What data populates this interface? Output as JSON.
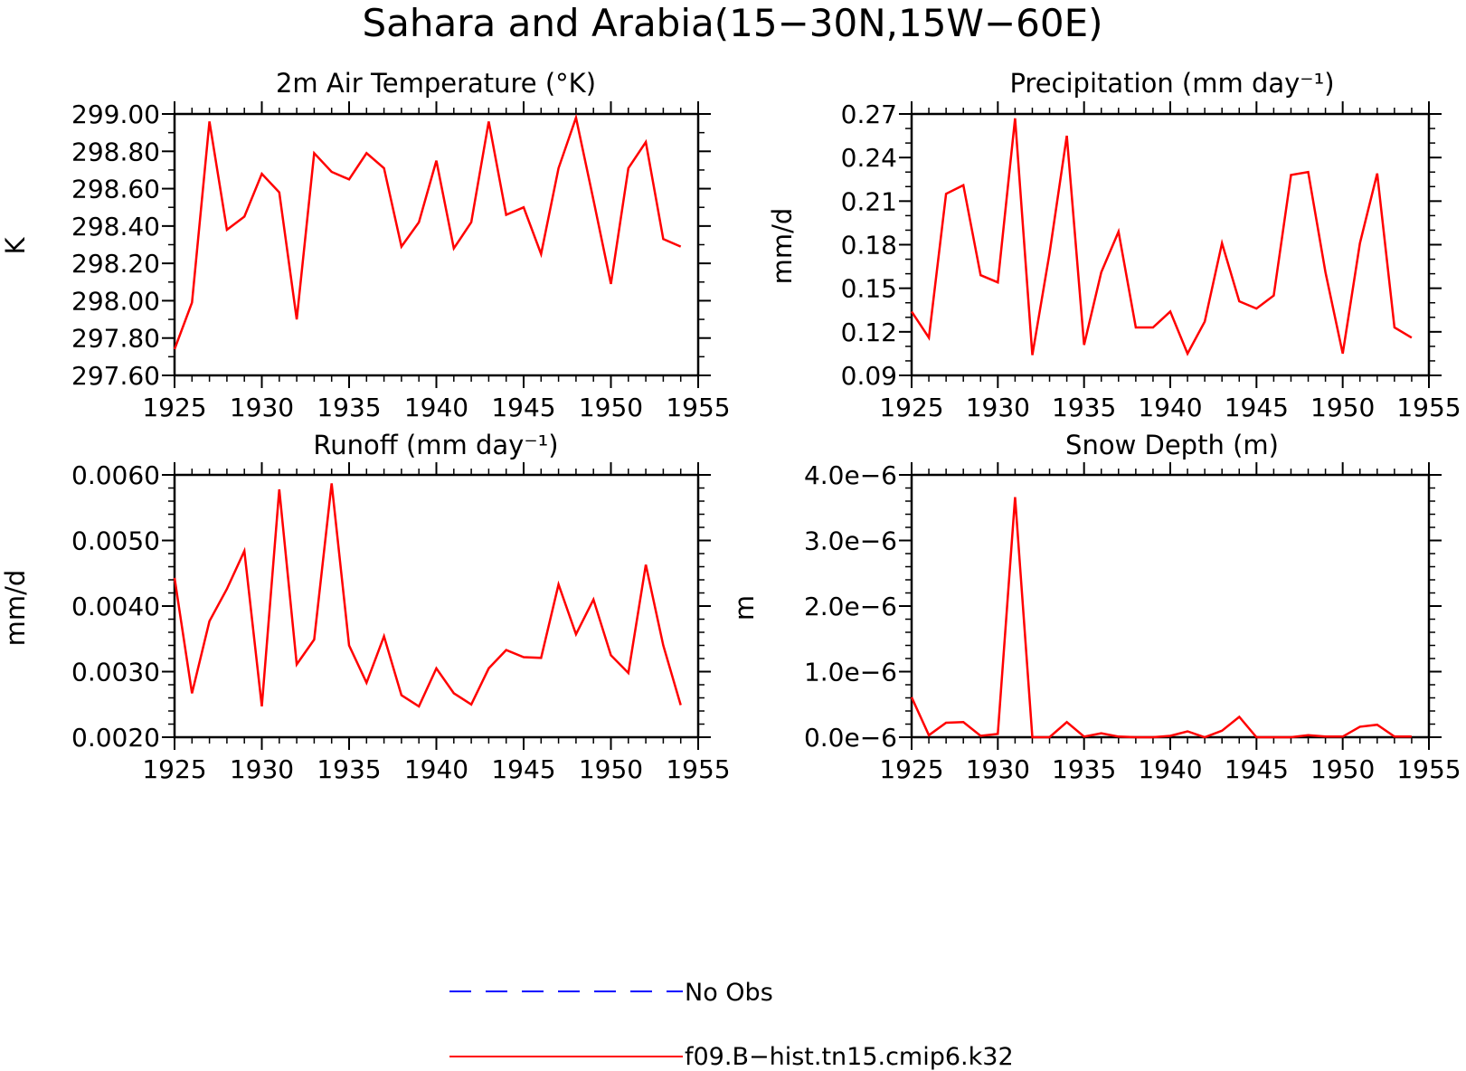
{
  "title": "Sahara and Arabia(15−30N,15W−60E)",
  "colors": {
    "model": "#ff0000",
    "obs": "#0000ff",
    "axis": "#000000"
  },
  "legend": [
    {
      "label": "No Obs",
      "style": "dashed",
      "color": "#0000ff"
    },
    {
      "label": "f09.B−hist.tn15.cmip6.k32",
      "style": "solid",
      "color": "#ff0000"
    }
  ],
  "chart_data": [
    {
      "type": "line",
      "title": "2m Air Temperature (°K)",
      "ylabel": "K",
      "xlim": [
        1925,
        1955
      ],
      "ylim": [
        297.6,
        299.0
      ],
      "xticks": [
        1925,
        1930,
        1935,
        1940,
        1945,
        1950,
        1955
      ],
      "yticks": [
        297.6,
        297.8,
        298.0,
        298.2,
        298.4,
        298.6,
        298.8,
        299.0
      ],
      "ytick_labels": [
        "297.60",
        "297.80",
        "298.00",
        "298.20",
        "298.40",
        "298.60",
        "298.80",
        "299.00"
      ],
      "yminor": 0.1,
      "x": [
        1925,
        1926,
        1927,
        1928,
        1929,
        1930,
        1931,
        1932,
        1933,
        1934,
        1935,
        1936,
        1937,
        1938,
        1939,
        1940,
        1941,
        1942,
        1943,
        1944,
        1945,
        1946,
        1947,
        1948,
        1949,
        1950,
        1951,
        1952,
        1953,
        1954
      ],
      "series": [
        {
          "name": "f09.B−hist.tn15.cmip6.k32",
          "values": [
            297.74,
            297.99,
            298.96,
            298.38,
            298.45,
            298.68,
            298.58,
            297.9,
            298.79,
            298.69,
            298.65,
            298.79,
            298.71,
            298.29,
            298.42,
            298.75,
            298.28,
            298.42,
            298.96,
            298.46,
            298.5,
            298.25,
            298.71,
            298.98,
            298.54,
            298.09,
            298.71,
            298.85,
            298.33,
            298.29
          ]
        }
      ]
    },
    {
      "type": "line",
      "title": "Precipitation (mm day⁻¹)",
      "ylabel": "mm/d",
      "xlim": [
        1925,
        1955
      ],
      "ylim": [
        0.09,
        0.27
      ],
      "xticks": [
        1925,
        1930,
        1935,
        1940,
        1945,
        1950,
        1955
      ],
      "yticks": [
        0.09,
        0.12,
        0.15,
        0.18,
        0.21,
        0.24,
        0.27
      ],
      "ytick_labels": [
        "0.09",
        "0.12",
        "0.15",
        "0.18",
        "0.21",
        "0.24",
        "0.27"
      ],
      "yminor": 0.01,
      "x": [
        1925,
        1926,
        1927,
        1928,
        1929,
        1930,
        1931,
        1932,
        1933,
        1934,
        1935,
        1936,
        1937,
        1938,
        1939,
        1940,
        1941,
        1942,
        1943,
        1944,
        1945,
        1946,
        1947,
        1948,
        1949,
        1950,
        1951,
        1952,
        1953,
        1954
      ],
      "series": [
        {
          "name": "f09.B−hist.tn15.cmip6.k32",
          "values": [
            0.134,
            0.116,
            0.215,
            0.221,
            0.159,
            0.154,
            0.267,
            0.104,
            0.174,
            0.255,
            0.111,
            0.161,
            0.189,
            0.123,
            0.123,
            0.134,
            0.105,
            0.127,
            0.181,
            0.141,
            0.136,
            0.145,
            0.228,
            0.23,
            0.161,
            0.105,
            0.181,
            0.229,
            0.123,
            0.116
          ]
        }
      ]
    },
    {
      "type": "line",
      "title": "Runoff (mm day⁻¹)",
      "ylabel": "mm/d",
      "xlim": [
        1925,
        1955
      ],
      "ylim": [
        0.002,
        0.006
      ],
      "xticks": [
        1925,
        1930,
        1935,
        1940,
        1945,
        1950,
        1955
      ],
      "yticks": [
        0.002,
        0.003,
        0.004,
        0.005,
        0.006
      ],
      "ytick_labels": [
        "0.0020",
        "0.0030",
        "0.0040",
        "0.0050",
        "0.0060"
      ],
      "yminor": 0.0002,
      "x": [
        1925,
        1926,
        1927,
        1928,
        1929,
        1930,
        1931,
        1932,
        1933,
        1934,
        1935,
        1936,
        1937,
        1938,
        1939,
        1940,
        1941,
        1942,
        1943,
        1944,
        1945,
        1946,
        1947,
        1948,
        1949,
        1950,
        1951,
        1952,
        1953,
        1954
      ],
      "series": [
        {
          "name": "f09.B−hist.tn15.cmip6.k32",
          "values": [
            0.00443,
            0.00267,
            0.00377,
            0.00426,
            0.00484,
            0.00247,
            0.00578,
            0.00311,
            0.00349,
            0.00587,
            0.0034,
            0.00283,
            0.00354,
            0.00264,
            0.00247,
            0.00305,
            0.00267,
            0.0025,
            0.00305,
            0.00333,
            0.00322,
            0.00321,
            0.00433,
            0.00357,
            0.0041,
            0.00325,
            0.00298,
            0.00463,
            0.0034,
            0.00249
          ]
        }
      ]
    },
    {
      "type": "line",
      "title": "Snow Depth (m)",
      "ylabel": "m",
      "xlim": [
        1925,
        1955
      ],
      "ylim": [
        0,
        4e-06
      ],
      "xticks": [
        1925,
        1930,
        1935,
        1940,
        1945,
        1950,
        1955
      ],
      "yticks": [
        0,
        1e-06,
        2e-06,
        3e-06,
        4e-06
      ],
      "ytick_labels": [
        "0.0e−6",
        "1.0e−6",
        "2.0e−6",
        "3.0e−6",
        "4.0e−6"
      ],
      "yminor": 2e-07,
      "x": [
        1925,
        1926,
        1927,
        1928,
        1929,
        1930,
        1931,
        1932,
        1933,
        1934,
        1935,
        1936,
        1937,
        1938,
        1939,
        1940,
        1941,
        1942,
        1943,
        1944,
        1945,
        1946,
        1947,
        1948,
        1949,
        1950,
        1951,
        1952,
        1953,
        1954
      ],
      "series": [
        {
          "name": "f09.B−hist.tn15.cmip6.k32",
          "values": [
            6.1e-07,
            3e-08,
            2.2e-07,
            2.3e-07,
            2e-08,
            5e-08,
            3.66e-06,
            0,
            0,
            2.3e-07,
            1e-08,
            6e-08,
            1e-08,
            0,
            0,
            2e-08,
            9e-08,
            0,
            1e-07,
            3.1e-07,
            0,
            0,
            0,
            3e-08,
            1e-08,
            1e-08,
            1.6e-07,
            1.9e-07,
            1e-08,
            1e-08
          ]
        }
      ]
    }
  ]
}
